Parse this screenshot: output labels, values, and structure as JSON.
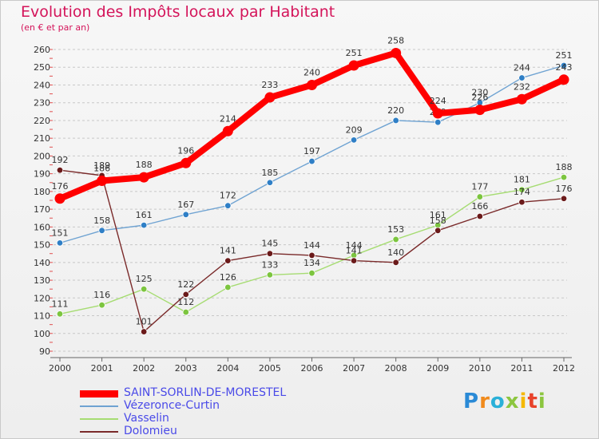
{
  "header": {
    "title": "Evolution des Impôts locaux par Habitant",
    "subtitle": "(en € et par an)"
  },
  "logo": {
    "letters": [
      "P",
      "r",
      "o",
      "x",
      "i",
      "t",
      "i"
    ]
  },
  "chart_data": {
    "type": "line",
    "title": "Evolution des Impôts locaux par Habitant",
    "subtitle": "(en € et par an)",
    "xlabel": "",
    "ylabel": "",
    "categories": [
      "2000",
      "2001",
      "2002",
      "2003",
      "2004",
      "2005",
      "2006",
      "2007",
      "2008",
      "2009",
      "2010",
      "2011",
      "2012"
    ],
    "yticks": [
      90,
      100,
      110,
      120,
      130,
      140,
      150,
      160,
      170,
      180,
      190,
      200,
      210,
      220,
      230,
      240,
      250,
      260
    ],
    "ylim": [
      90,
      260
    ],
    "grid": "horizontal dashed",
    "legend_position": "bottom-left",
    "series": [
      {
        "name": "Vézeronce-Curtin",
        "color": "#6fa3d2",
        "marker": "#2f7fc6",
        "emphasis": false,
        "values": [
          151,
          158,
          161,
          167,
          172,
          185,
          197,
          209,
          220,
          219,
          230,
          244,
          251
        ]
      },
      {
        "name": "Vasselin",
        "color": "#a6dc72",
        "marker": "#7cc53f",
        "emphasis": false,
        "values": [
          111,
          116,
          125,
          112,
          126,
          133,
          134,
          144,
          153,
          161,
          177,
          181,
          188
        ]
      },
      {
        "name": "Dolomieu",
        "color": "#7a2a2a",
        "marker": "#6b1a1a",
        "emphasis": false,
        "values": [
          192,
          189,
          101,
          122,
          141,
          145,
          144,
          141,
          140,
          158,
          166,
          174,
          176
        ]
      },
      {
        "name": "SAINT-SORLIN-DE-MORESTEL",
        "color": "#ff0000",
        "marker": "#ff0000",
        "emphasis": true,
        "values": [
          176,
          186,
          188,
          196,
          214,
          233,
          240,
          251,
          258,
          224,
          226,
          232,
          243
        ]
      }
    ],
    "legend_order": [
      "SAINT-SORLIN-DE-MORESTEL",
      "Vézeronce-Curtin",
      "Vasselin",
      "Dolomieu"
    ]
  }
}
